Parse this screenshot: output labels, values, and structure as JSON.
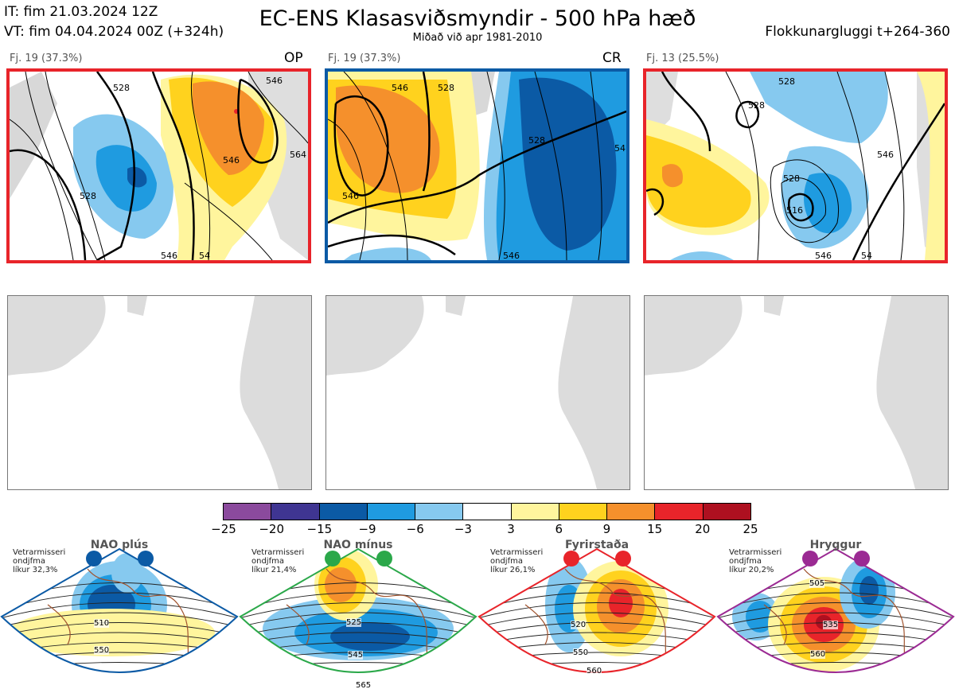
{
  "header": {
    "it_line": "IT: fim 21.03.2024 12Z",
    "vt_line": "VT: fim 04.04.2024 00Z  (+324h)",
    "title": "EC-ENS Klasasviðsmyndir - 500 hPa hæð",
    "subtitle": "Miðað við apr 1981-2010",
    "window": "Flokkunargluggi t+264-360"
  },
  "panels": [
    {
      "label": "Fj. 19 (37.3%)",
      "tag": "OP",
      "border": "#e8242a"
    },
    {
      "label": "Fj. 19 (37.3%)",
      "tag": "CR",
      "border": "#0b5aa5"
    },
    {
      "label": "Fj. 13 (25.5%)",
      "tag": "",
      "border": "#e8242a"
    }
  ],
  "contour_labels": {
    "panel1": [
      "528",
      "546",
      "564",
      "546",
      "528",
      "546",
      "54"
    ],
    "panel2": [
      "546",
      "528",
      "546",
      "546",
      "528",
      "54"
    ],
    "panel3": [
      "528",
      "546",
      "528",
      "516",
      "546",
      "54",
      "528"
    ]
  },
  "colorbar": {
    "ticks": [
      "−25",
      "−20",
      "−15",
      "−9",
      "−6",
      "−3",
      "3",
      "6",
      "9",
      "15",
      "20",
      "25"
    ],
    "colors": [
      "#8b4a9d",
      "#3f3592",
      "#0b5aa5",
      "#1f9be0",
      "#86c9ef",
      "#ffffff",
      "#fff59d",
      "#ffd21e",
      "#f5902c",
      "#e8242a",
      "#ae1020"
    ]
  },
  "regimes": [
    {
      "name": "NAO plús",
      "note": [
        "Vetrarmisseri",
        "ondjfma",
        "líkur 32,3%"
      ],
      "color": "#0b5aa5",
      "labels": [
        "510",
        "550"
      ]
    },
    {
      "name": "NAO mínus",
      "note": [
        "Vetrarmisseri",
        "ondjfma",
        "líkur 21,4%"
      ],
      "color": "#2ba84a",
      "labels": [
        "525",
        "545",
        "565"
      ]
    },
    {
      "name": "Fyrirstaða",
      "note": [
        "Vetrarmisseri",
        "ondjfma",
        "líkur 26,1%"
      ],
      "color": "#e8242a",
      "labels": [
        "520",
        "550",
        "560"
      ]
    },
    {
      "name": "Hryggur",
      "note": [
        "Vetrarmisseri",
        "ondjfma",
        "líkur 20,2%"
      ],
      "color": "#9b2a93",
      "labels": [
        "505",
        "535",
        "560"
      ]
    }
  ],
  "chart_data": {
    "type": "heatmap",
    "title": "EC-ENS Klasasviðsmyndir - 500 hPa hæð",
    "subtitle": "Miðað við apr 1981-2010",
    "clusters": [
      {
        "label": "Fj. 19 (37.3%)",
        "tag": "OP",
        "members": 19,
        "percent": 37.3
      },
      {
        "label": "Fj. 19 (37.3%)",
        "tag": "CR",
        "members": 19,
        "percent": 37.3
      },
      {
        "label": "Fj. 13 (25.5%)",
        "tag": "",
        "members": 13,
        "percent": 25.5
      }
    ],
    "colorbar_bounds": [
      -25,
      -20,
      -15,
      -9,
      -6,
      -3,
      3,
      6,
      9,
      15,
      20,
      25
    ],
    "regimes": [
      {
        "name": "NAO plús",
        "probability_percent": 32.3
      },
      {
        "name": "NAO mínus",
        "probability_percent": 21.4
      },
      {
        "name": "Fyrirstaða",
        "probability_percent": 26.1
      },
      {
        "name": "Hryggur",
        "probability_percent": 20.2
      }
    ]
  }
}
